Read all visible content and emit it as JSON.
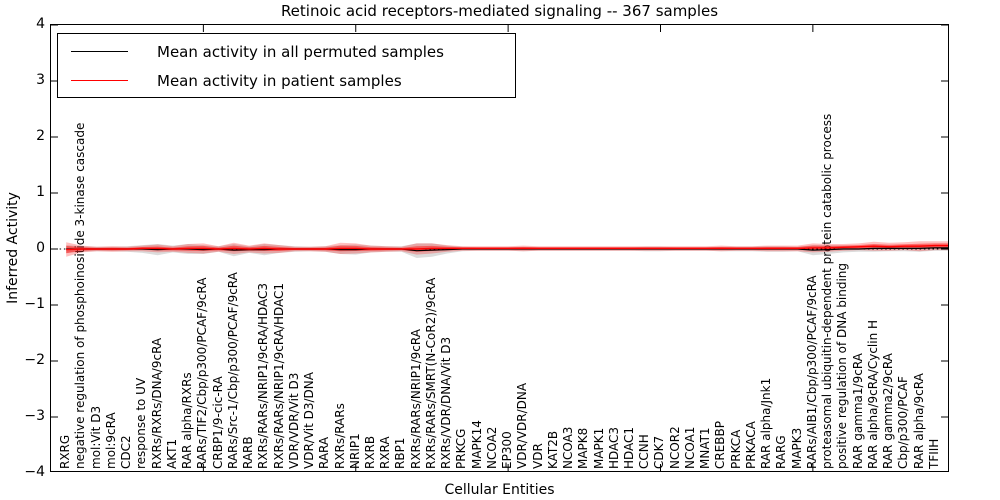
{
  "figure": {
    "title": "Retinoic acid receptors-mediated signaling -- 367 samples",
    "x_axis_label": "Cellular Entities",
    "y_axis_label": "Inferred Activity"
  },
  "legend": {
    "items": [
      {
        "label": "Mean activity in all permuted samples",
        "color": "#000000"
      },
      {
        "label": "Mean activity in patient samples",
        "color": "#ff0000"
      }
    ]
  },
  "colors": {
    "background": "#ffffff",
    "frame": "#000000",
    "permuted_line": "#000000",
    "permuted_band": "rgba(128,128,128,0.28)",
    "patient_line": "#ff0000",
    "patient_band": "rgba(255,0,0,0.25)",
    "patient_band_inner": "rgba(255,0,0,0.45)",
    "zero_line": "#000000"
  },
  "chart_data": {
    "type": "line",
    "title": "Retinoic acid receptors-mediated signaling -- 367 samples",
    "xlabel": "Cellular Entities",
    "ylabel": "Inferred Activity",
    "ylim": [
      -4,
      4
    ],
    "yticks": [
      4,
      3,
      2,
      1,
      0,
      -1,
      -2,
      -3,
      -4
    ],
    "xticks_major_positions": [
      10,
      20,
      30,
      40,
      50
    ],
    "zero_reference_line": "dotted",
    "legend_position": "upper left",
    "grid": false,
    "categories": [
      "RXRG",
      "negative regulation of phosphoinositide 3-kinase cascade",
      "mol:Vit D3",
      "mol:9cRA",
      "CDC2",
      "response to UV",
      "RXRs/RXRs/DNA/9cRA",
      "AKT1",
      "RAR alpha/RXRs",
      "RARs/TIF2/Cbp/p300/PCAF/9cRA",
      "CRBP1/9-cic-RA",
      "RARs/Src-1/Cbp/p300/PCAF/9cRA",
      "RARB",
      "RXRs/RARs/NRIP1/9cRA/HDAC3",
      "RXRs/RARs/NRIP1/9cRA/HDAC1",
      "VDR/VDR/Vit D3",
      "VDR/Vit D3/DNA",
      "RARA",
      "RXRs/RARs",
      "NRIP1",
      "RXRB",
      "RXRA",
      "RBP1",
      "RXRs/RARs/NRIP1/9cRA",
      "RXRs/RARs/SMRT(N-CoR2)/9cRA",
      "RXRs/VDR/DNA/Vit D3",
      "PRKCG",
      "MAPK14",
      "NCOA2",
      "EP300",
      "VDR/VDR/DNA",
      "VDR",
      "KAT2B",
      "NCOA3",
      "MAPK8",
      "MAPK1",
      "HDAC3",
      "HDAC1",
      "CCNH",
      "CDK7",
      "NCOR2",
      "NCOA1",
      "MNAT1",
      "CREBBP",
      "PRKCA",
      "PRKACA",
      "RAR alpha/Jnk1",
      "RARG",
      "MAPK3",
      "RARs/AIB1/Cbp/p300/PCAF/9cRA",
      "proteasomal ubiquitin-dependent protein catabolic process",
      "positive regulation of DNA binding",
      "RAR gamma1/9cRA",
      "RAR alpha/9cRA/Cyclin H",
      "RAR gamma2/9cRA",
      "Cbp/p300/PCAF",
      "RAR alpha/9cRA",
      "TFIIH"
    ],
    "series": [
      {
        "name": "Mean activity in all permuted samples",
        "color": "#000000",
        "band_color": "rgba(128,128,128,0.28)",
        "values": [
          0,
          0,
          0,
          0,
          0,
          0,
          -0.01,
          0,
          0,
          -0.01,
          0,
          -0.02,
          -0.01,
          -0.01,
          0,
          0,
          0,
          0,
          -0.01,
          -0.01,
          0,
          0,
          0,
          -0.03,
          -0.02,
          -0.01,
          0,
          0,
          0,
          0,
          0,
          0,
          0,
          0,
          0,
          0,
          0,
          0,
          0,
          0,
          0,
          0,
          0,
          0,
          0,
          0,
          0,
          0,
          0,
          -0.02,
          -0.01,
          0,
          0,
          0.01,
          0.01,
          0.01,
          0.01,
          0.02
        ],
        "band_halfwidth": [
          0.07,
          0.05,
          0.04,
          0.04,
          0.05,
          0.07,
          0.1,
          0.06,
          0.09,
          0.08,
          0.05,
          0.11,
          0.06,
          0.1,
          0.07,
          0.05,
          0.04,
          0.05,
          0.08,
          0.09,
          0.06,
          0.05,
          0.05,
          0.13,
          0.12,
          0.07,
          0.04,
          0.03,
          0.03,
          0.03,
          0.04,
          0.03,
          0.03,
          0.03,
          0.03,
          0.03,
          0.03,
          0.03,
          0.04,
          0.04,
          0.03,
          0.03,
          0.03,
          0.04,
          0.04,
          0.04,
          0.05,
          0.05,
          0.04,
          0.09,
          0.08,
          0.06,
          0.05,
          0.06,
          0.05,
          0.05,
          0.06,
          0.05
        ]
      },
      {
        "name": "Mean activity in patient samples",
        "color": "#ff0000",
        "band_color": "rgba(255,0,0,0.25)",
        "band_inner_color": "rgba(255,0,0,0.45)",
        "values": [
          -0.01,
          0,
          0,
          0,
          0,
          0.01,
          0.01,
          0,
          0.01,
          0.01,
          0,
          0.01,
          0,
          0.01,
          0,
          0,
          0,
          0,
          0.01,
          0.01,
          0,
          0,
          0,
          0,
          0.01,
          0.01,
          0.01,
          0.01,
          0.01,
          0.01,
          0.01,
          0.01,
          0.01,
          0.01,
          0.01,
          0.01,
          0.01,
          0.01,
          0.01,
          0.01,
          0.01,
          0.01,
          0.01,
          0.01,
          0.01,
          0.01,
          0.01,
          0.01,
          0.01,
          0.02,
          0.02,
          0.03,
          0.04,
          0.05,
          0.04,
          0.05,
          0.05,
          0.06
        ],
        "band_halfwidth": [
          0.13,
          0.06,
          0.04,
          0.05,
          0.04,
          0.05,
          0.07,
          0.05,
          0.08,
          0.09,
          0.05,
          0.1,
          0.06,
          0.09,
          0.07,
          0.04,
          0.04,
          0.05,
          0.1,
          0.09,
          0.06,
          0.05,
          0.04,
          0.1,
          0.09,
          0.06,
          0.04,
          0.04,
          0.04,
          0.04,
          0.05,
          0.04,
          0.04,
          0.04,
          0.04,
          0.04,
          0.04,
          0.04,
          0.04,
          0.04,
          0.04,
          0.04,
          0.04,
          0.05,
          0.04,
          0.04,
          0.05,
          0.05,
          0.05,
          0.08,
          0.07,
          0.06,
          0.06,
          0.08,
          0.07,
          0.07,
          0.09,
          0.08
        ]
      }
    ]
  }
}
